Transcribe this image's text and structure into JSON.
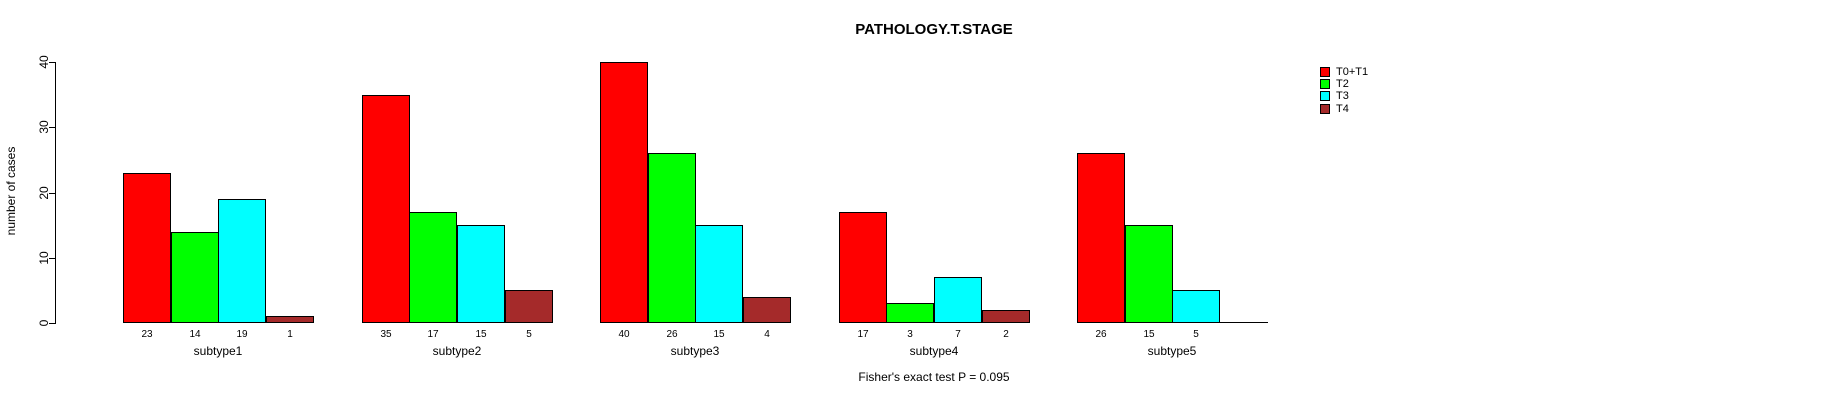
{
  "title": "PATHOLOGY.T.STAGE",
  "footer": "Fisher's exact test P = 0.095",
  "y_axis": {
    "label": "number of cases",
    "ticks": [
      0,
      10,
      20,
      30,
      40
    ]
  },
  "chart_data": {
    "type": "bar",
    "title": "PATHOLOGY.T.STAGE",
    "categories": [
      "subtype1",
      "subtype2",
      "subtype3",
      "subtype4",
      "subtype5"
    ],
    "series": [
      {
        "name": "T0+T1",
        "color": "#FF0000",
        "values": [
          23,
          35,
          40,
          17,
          26
        ]
      },
      {
        "name": "T2",
        "color": "#00FF00",
        "values": [
          14,
          17,
          26,
          3,
          15
        ]
      },
      {
        "name": "T3",
        "color": "#00FFFF",
        "values": [
          19,
          15,
          15,
          7,
          5
        ]
      },
      {
        "name": "T4",
        "color": "#A52A2A",
        "values": [
          1,
          5,
          4,
          2,
          0
        ]
      }
    ],
    "xlabel": "",
    "ylabel": "number of cases",
    "ylim": [
      0,
      40
    ],
    "yticks": [
      0,
      10,
      20,
      30,
      40
    ],
    "grid": false,
    "bar_border_color": "#000000",
    "show_value_labels_under_bars": true,
    "zero_value_bars_drawn_as_baseline_segment": true,
    "legend_position": "right-outside-top",
    "annotation": "Fisher's exact test P = 0.095"
  }
}
